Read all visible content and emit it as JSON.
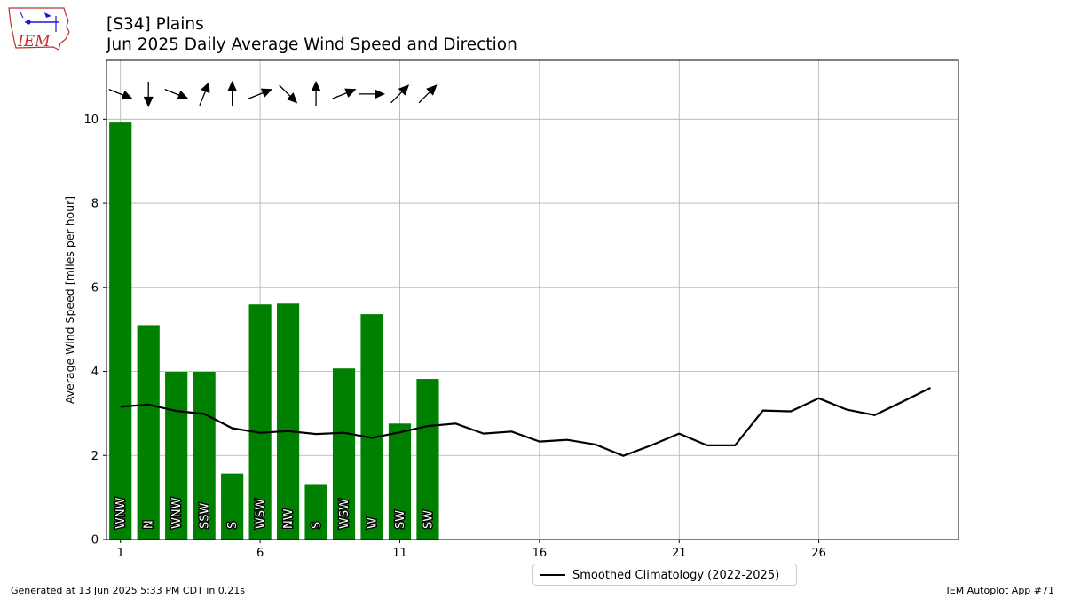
{
  "title": "[S34] Plains",
  "subtitle": "Jun 2025 Daily Average Wind Speed and Direction",
  "logo_text": "IEM",
  "footer": {
    "generated": "Generated at 13 Jun 2025 5:33 PM CDT in 0.21s",
    "app": "IEM Autoplot App #71"
  },
  "legend": {
    "climatology_label": "Smoothed Climatology (2022-2025)"
  },
  "colors": {
    "bar": "#008000",
    "climatology": "#000000",
    "grid": "#b0b0b0"
  },
  "chart_data": {
    "type": "bar",
    "title": "[S34] Plains",
    "subtitle": "Jun 2025 Daily Average Wind Speed and Direction",
    "xlabel": "",
    "ylabel": "Average Wind Speed [miles per hour]",
    "xlim": [
      0.5,
      31
    ],
    "ylim": [
      0,
      11.4
    ],
    "xticks": [
      1,
      6,
      11,
      16,
      21,
      26
    ],
    "yticks": [
      0,
      2,
      4,
      6,
      8,
      10
    ],
    "grid": true,
    "legend_position": "bottom-center",
    "bars": {
      "days": [
        1,
        2,
        3,
        4,
        5,
        6,
        7,
        8,
        9,
        10,
        11,
        12
      ],
      "speed": [
        9.92,
        5.1,
        3.99,
        3.99,
        1.57,
        5.59,
        5.61,
        1.32,
        4.07,
        5.36,
        2.76,
        3.82
      ],
      "direction_label": [
        "WNW",
        "N",
        "WNW",
        "SSW",
        "S",
        "WSW",
        "NW",
        "S",
        "WSW",
        "W",
        "SW",
        "SW"
      ],
      "direction_deg": [
        292,
        0,
        292,
        202,
        180,
        248,
        315,
        180,
        248,
        270,
        225,
        225
      ]
    },
    "series": [
      {
        "name": "Smoothed Climatology (2022-2025)",
        "x": [
          1,
          2,
          3,
          4,
          5,
          6,
          7,
          8,
          9,
          10,
          11,
          12,
          13,
          14,
          15,
          16,
          17,
          18,
          19,
          20,
          21,
          22,
          23,
          24,
          25,
          26,
          27,
          28,
          29,
          30
        ],
        "values": [
          3.16,
          3.21,
          3.06,
          2.99,
          2.65,
          2.54,
          2.58,
          2.51,
          2.54,
          2.42,
          2.55,
          2.7,
          2.76,
          2.52,
          2.57,
          2.33,
          2.37,
          2.26,
          1.99,
          2.24,
          2.52,
          2.24,
          2.24,
          3.07,
          3.05,
          3.36,
          3.09,
          2.96,
          3.28,
          3.61
        ]
      }
    ]
  }
}
